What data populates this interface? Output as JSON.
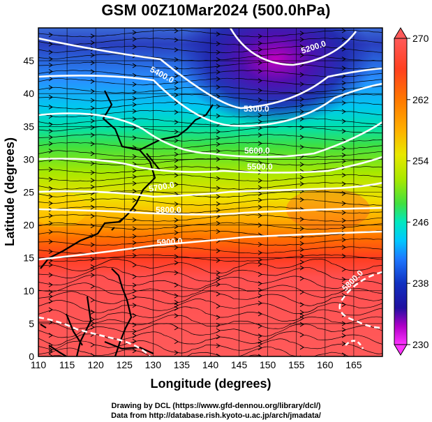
{
  "title": "GSM 00Z10Mar2024 (500.0hPa)",
  "map": {
    "xlabel": "Longitude (degrees)",
    "ylabel": "Latitude (degrees)",
    "xlim": [
      110,
      170
    ],
    "ylim": [
      0,
      50
    ],
    "xticks": [
      "110",
      "115",
      "120",
      "125",
      "130",
      "135",
      "140",
      "145",
      "150",
      "155",
      "160",
      "165"
    ],
    "yticks": [
      "0",
      "5",
      "10",
      "15",
      "20",
      "25",
      "30",
      "35",
      "40",
      "45"
    ],
    "contours": [
      {
        "label": "5200.0"
      },
      {
        "label": "5400.0"
      },
      {
        "label": "5300.0"
      },
      {
        "label": "5600.0"
      },
      {
        "label": "5500.0"
      },
      {
        "label": "5700.0"
      },
      {
        "label": "5800.0"
      },
      {
        "label": "5900.0"
      },
      {
        "label": "5800.0"
      }
    ]
  },
  "colorbar": {
    "min": 230,
    "max": 270,
    "ticks": [
      "270",
      "262",
      "254",
      "246",
      "238",
      "230"
    ],
    "stops": [
      "#ff33ff",
      "#b000c8",
      "#2010a0",
      "#1030c0",
      "#1e78ff",
      "#00c8ff",
      "#00e8c0",
      "#40e040",
      "#a8e800",
      "#e8e800",
      "#ffb000",
      "#ff7800",
      "#ff4020",
      "#ff5a5a"
    ]
  },
  "credits": {
    "line1": "Drawing by DCL (https://www.gfd-dennou.org/library/dcl/)",
    "line2": "Data from http://database.rish.kyoto-u.ac.jp/arch/jmadata/"
  }
}
